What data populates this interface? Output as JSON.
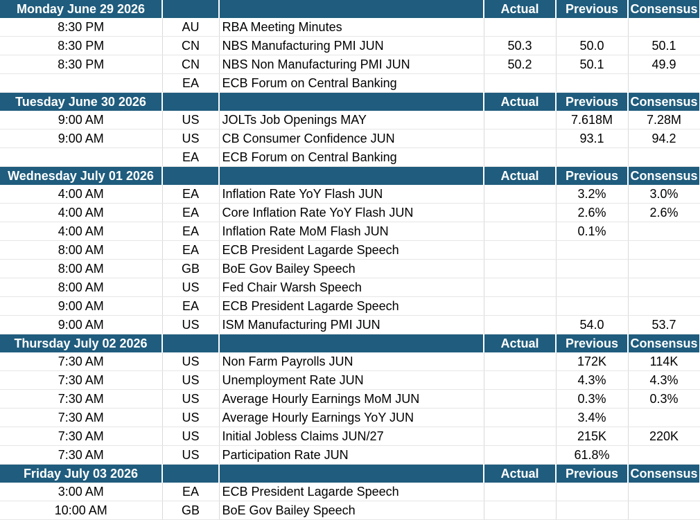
{
  "columns": {
    "actual": "Actual",
    "previous": "Previous",
    "consensus": "Consensus"
  },
  "days": [
    {
      "label": "Monday June 29 2026",
      "rows": [
        {
          "time": "8:30 PM",
          "country": "AU",
          "event": "RBA Meeting Minutes",
          "actual": "",
          "previous": "",
          "consensus": ""
        },
        {
          "time": "8:30 PM",
          "country": "CN",
          "event": "NBS Manufacturing PMI JUN",
          "actual": "50.3",
          "previous": "50.0",
          "consensus": "50.1"
        },
        {
          "time": "8:30 PM",
          "country": "CN",
          "event": "NBS Non Manufacturing PMI JUN",
          "actual": "50.2",
          "previous": "50.1",
          "consensus": "49.9"
        },
        {
          "time": "",
          "country": "EA",
          "event": "ECB Forum on Central Banking",
          "actual": "",
          "previous": "",
          "consensus": ""
        }
      ]
    },
    {
      "label": "Tuesday June 30 2026",
      "rows": [
        {
          "time": "9:00 AM",
          "country": "US",
          "event": "JOLTs Job Openings MAY",
          "actual": "",
          "previous": "7.618M",
          "consensus": "7.28M"
        },
        {
          "time": "9:00 AM",
          "country": "US",
          "event": "CB Consumer Confidence JUN",
          "actual": "",
          "previous": "93.1",
          "consensus": "94.2"
        },
        {
          "time": "",
          "country": "EA",
          "event": "ECB Forum on Central Banking",
          "actual": "",
          "previous": "",
          "consensus": ""
        }
      ]
    },
    {
      "label": "Wednesday July 01 2026",
      "rows": [
        {
          "time": "4:00 AM",
          "country": "EA",
          "event": "Inflation Rate YoY Flash JUN",
          "actual": "",
          "previous": "3.2%",
          "consensus": "3.0%"
        },
        {
          "time": "4:00 AM",
          "country": "EA",
          "event": "Core Inflation Rate YoY Flash JUN",
          "actual": "",
          "previous": "2.6%",
          "consensus": "2.6%"
        },
        {
          "time": "4:00 AM",
          "country": "EA",
          "event": "Inflation Rate MoM Flash JUN",
          "actual": "",
          "previous": "0.1%",
          "consensus": ""
        },
        {
          "time": "8:00 AM",
          "country": "EA",
          "event": "ECB President Lagarde Speech",
          "actual": "",
          "previous": "",
          "consensus": ""
        },
        {
          "time": "8:00 AM",
          "country": "GB",
          "event": "BoE Gov Bailey Speech",
          "actual": "",
          "previous": "",
          "consensus": ""
        },
        {
          "time": "8:00 AM",
          "country": "US",
          "event": "Fed Chair Warsh Speech",
          "actual": "",
          "previous": "",
          "consensus": ""
        },
        {
          "time": "9:00 AM",
          "country": "EA",
          "event": "ECB President Lagarde Speech",
          "actual": "",
          "previous": "",
          "consensus": ""
        },
        {
          "time": "9:00 AM",
          "country": "US",
          "event": "ISM Manufacturing PMI JUN",
          "actual": "",
          "previous": "54.0",
          "consensus": "53.7"
        }
      ]
    },
    {
      "label": "Thursday July 02 2026",
      "rows": [
        {
          "time": "7:30 AM",
          "country": "US",
          "event": "Non Farm Payrolls JUN",
          "actual": "",
          "previous": "172K",
          "consensus": "114K"
        },
        {
          "time": "7:30 AM",
          "country": "US",
          "event": "Unemployment Rate JUN",
          "actual": "",
          "previous": "4.3%",
          "consensus": "4.3%"
        },
        {
          "time": "7:30 AM",
          "country": "US",
          "event": "Average Hourly Earnings MoM JUN",
          "actual": "",
          "previous": "0.3%",
          "consensus": "0.3%"
        },
        {
          "time": "7:30 AM",
          "country": "US",
          "event": "Average Hourly Earnings YoY JUN",
          "actual": "",
          "previous": "3.4%",
          "consensus": ""
        },
        {
          "time": "7:30 AM",
          "country": "US",
          "event": "Initial Jobless Claims JUN/27",
          "actual": "",
          "previous": "215K",
          "consensus": "220K"
        },
        {
          "time": "7:30 AM",
          "country": "US",
          "event": "Participation Rate JUN",
          "actual": "",
          "previous": "61.8%",
          "consensus": ""
        }
      ]
    },
    {
      "label": "Friday July 03 2026",
      "rows": [
        {
          "time": "3:00 AM",
          "country": "EA",
          "event": "ECB President Lagarde Speech",
          "actual": "",
          "previous": "",
          "consensus": ""
        },
        {
          "time": "10:00 AM",
          "country": "GB",
          "event": "BoE Gov Bailey Speech",
          "actual": "",
          "previous": "",
          "consensus": ""
        }
      ]
    }
  ],
  "colors": {
    "header_bg": "#1f5c7d",
    "header_text": "#ffffff",
    "grid": "#d9d9d9"
  }
}
